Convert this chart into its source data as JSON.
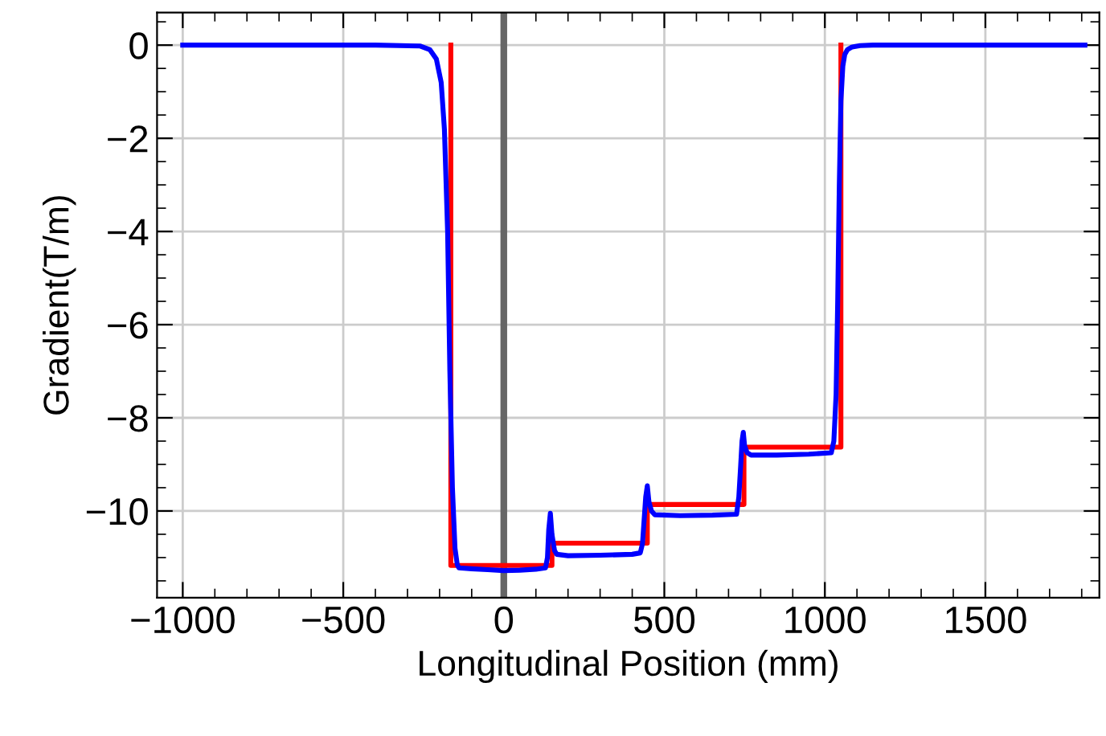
{
  "chart_data": {
    "type": "line",
    "xlabel": "Longitudinal Position (mm)",
    "ylabel": "Gradient(T/m)",
    "xlim": [
      -1080,
      1855
    ],
    "ylim": [
      -11.86,
      0.7
    ],
    "xticks": [
      {
        "value": -1000,
        "label": "−1000"
      },
      {
        "value": -500,
        "label": "−500"
      },
      0,
      500,
      1000,
      1500
    ],
    "yticks": [
      {
        "value": -10,
        "label": "−10"
      },
      {
        "value": -8,
        "label": "−8"
      },
      {
        "value": -6,
        "label": "−6"
      },
      {
        "value": -4,
        "label": "−4"
      },
      {
        "value": -2,
        "label": "−2"
      },
      0
    ],
    "grid": true,
    "legend": false,
    "marker": "none",
    "line_style": "solid",
    "ref_lines": [
      {
        "axis": "x",
        "value": 0,
        "label": null,
        "color": "#666666"
      }
    ],
    "series": [
      {
        "color": "#ff0000",
        "x": [
          -165,
          -165,
          150,
          150,
          447,
          447,
          748,
          748,
          1050,
          1050
        ],
        "values": [
          0,
          -11.17,
          -11.17,
          -10.69,
          -10.69,
          -9.86,
          -9.86,
          -8.63,
          -8.63,
          0
        ]
      },
      {
        "color": "#0000ff",
        "x": [
          -1000,
          -400,
          -260,
          -230,
          -210,
          -195,
          -185,
          -175,
          -168,
          -160,
          -152,
          -145,
          -140,
          -100,
          -50,
          0,
          50,
          100,
          130,
          136,
          140,
          145,
          150,
          158,
          165,
          200,
          300,
          400,
          425,
          432,
          437,
          442,
          447,
          452,
          460,
          470,
          550,
          650,
          725,
          732,
          738,
          742,
          746,
          750,
          758,
          770,
          850,
          950,
          1020,
          1028,
          1035,
          1040,
          1045,
          1050,
          1056,
          1062,
          1070,
          1085,
          1110,
          1150,
          1250,
          1500,
          1810
        ],
        "values": [
          0,
          0,
          -0.02,
          -0.1,
          -0.3,
          -0.8,
          -1.8,
          -4,
          -7,
          -9.5,
          -10.8,
          -11.15,
          -11.22,
          -11.24,
          -11.26,
          -11.28,
          -11.27,
          -11.25,
          -11.22,
          -11.0,
          -10.4,
          -10.05,
          -10.5,
          -10.85,
          -10.93,
          -10.96,
          -10.95,
          -10.93,
          -10.9,
          -10.7,
          -10.2,
          -9.7,
          -9.46,
          -9.8,
          -10.0,
          -10.08,
          -10.1,
          -10.09,
          -10.07,
          -9.7,
          -9.0,
          -8.5,
          -8.31,
          -8.6,
          -8.75,
          -8.8,
          -8.8,
          -8.78,
          -8.75,
          -8.5,
          -7.5,
          -5.5,
          -3,
          -1.2,
          -0.45,
          -0.2,
          -0.1,
          -0.04,
          -0.01,
          0,
          0,
          0,
          0
        ]
      }
    ]
  }
}
